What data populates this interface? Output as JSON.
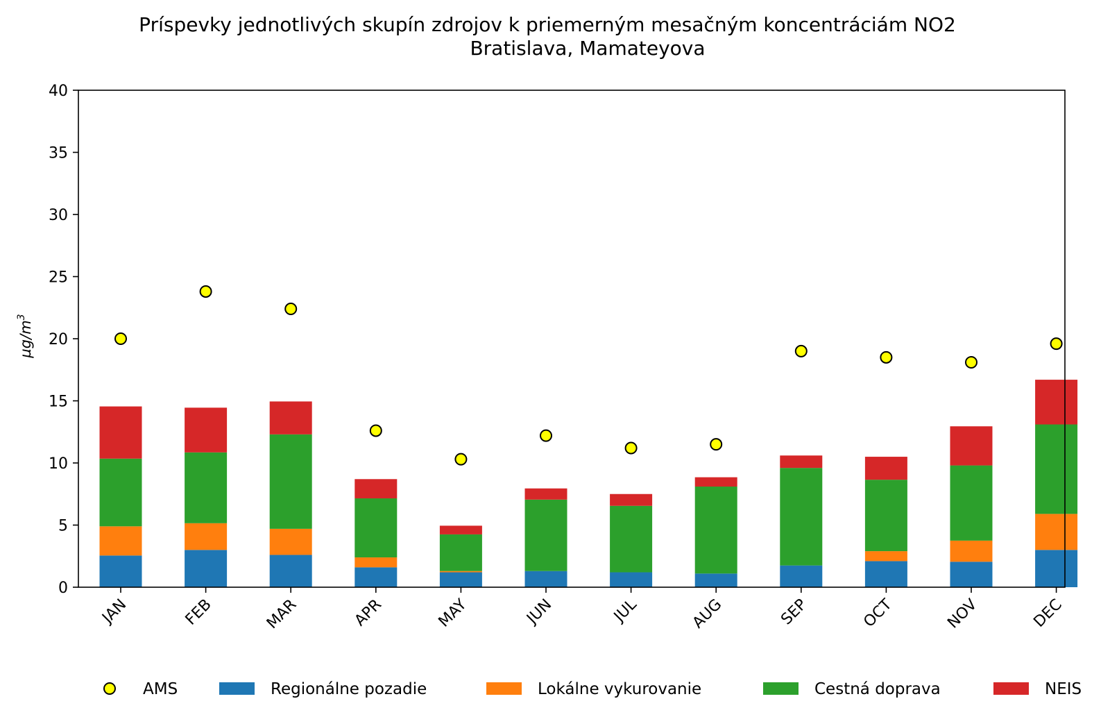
{
  "chart_data": {
    "type": "bar",
    "stacked": true,
    "title": "Príspevky jednotlivých skupín zdrojov k priemerným mesačným koncentráciám NO2",
    "subtitle": "Bratislava, Mamateyova",
    "xlabel": "",
    "ylabel": "µg/m",
    "ylabel_superscript": "3",
    "ylim": [
      0,
      40
    ],
    "yticks": [
      0,
      5,
      10,
      15,
      20,
      25,
      30,
      35,
      40
    ],
    "grid": false,
    "legend_position": "bottom",
    "categories": [
      "JAN",
      "FEB",
      "MAR",
      "APR",
      "MAY",
      "JUN",
      "JUL",
      "AUG",
      "SEP",
      "OCT",
      "NOV",
      "DEC"
    ],
    "series": [
      {
        "name": "Regionálne pozadie",
        "color": "#1f77b4",
        "values": [
          2.55,
          3.0,
          2.6,
          1.6,
          1.2,
          1.3,
          1.2,
          1.1,
          1.75,
          2.1,
          2.05,
          3.0
        ]
      },
      {
        "name": "Lokálne vykurovanie",
        "color": "#ff7f0e",
        "values": [
          2.35,
          2.15,
          2.1,
          0.8,
          0.1,
          0.0,
          0.0,
          0.0,
          0.0,
          0.8,
          1.7,
          2.9
        ]
      },
      {
        "name": "Cestná doprava",
        "color": "#2ca02c",
        "values": [
          5.45,
          5.7,
          7.6,
          4.75,
          2.95,
          5.75,
          5.35,
          7.0,
          7.85,
          5.75,
          6.05,
          7.2
        ]
      },
      {
        "name": "NEIS",
        "color": "#d62728",
        "values": [
          4.2,
          3.6,
          2.65,
          1.55,
          0.7,
          0.9,
          0.95,
          0.75,
          1.0,
          1.85,
          3.15,
          3.6
        ]
      }
    ],
    "markers": {
      "name": "AMS",
      "color": "#ffff00",
      "edge_color": "#000000",
      "values": [
        20.0,
        23.8,
        22.4,
        12.6,
        10.3,
        12.2,
        11.2,
        11.5,
        19.0,
        18.5,
        18.1,
        19.6
      ]
    }
  }
}
